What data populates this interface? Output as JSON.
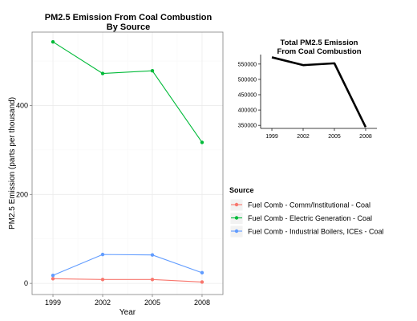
{
  "chart_data": [
    {
      "type": "line",
      "title": "PM2.5 Emission From Coal Combustion",
      "subtitle": "By Source",
      "xlabel": "Year",
      "ylabel": "PM2.5 Emission (parts per thousand)",
      "x": [
        1999,
        2002,
        2005,
        2008
      ],
      "x_ticks": [
        "1999",
        "2002",
        "2005",
        "2008"
      ],
      "y_ticks": [
        0,
        200,
        400
      ],
      "ylim": [
        -25,
        565
      ],
      "grid": true,
      "legend": {
        "title": "Source",
        "placement": "right"
      },
      "series": [
        {
          "name": "Fuel Comb - Comm/Institutional - Coal",
          "color": "#F8766D",
          "values": [
            10.6,
            8.8,
            8.8,
            3.0
          ]
        },
        {
          "name": "Fuel Comb - Electric Generation - Coal",
          "color": "#00BA38",
          "values": [
            543,
            472,
            478,
            317
          ]
        },
        {
          "name": "Fuel Comb - Industrial Boilers, ICEs - Coal",
          "color": "#619CFF",
          "values": [
            18,
            65,
            64,
            24
          ]
        }
      ]
    },
    {
      "type": "line",
      "title": "Total PM2.5 Emission",
      "subtitle": "From Coal Combustion",
      "xlabel": "",
      "ylabel": "",
      "x": [
        1999,
        2002,
        2005,
        2008
      ],
      "x_ticks": [
        "1999",
        "2002",
        "2005",
        "2008"
      ],
      "y_ticks": [
        350000,
        400000,
        450000,
        500000,
        550000
      ],
      "ylim": [
        340000,
        581000
      ],
      "grid": false,
      "series": [
        {
          "name": "",
          "color": "#000000",
          "values": [
            572000,
            546500,
            552500,
            344000
          ]
        }
      ]
    }
  ]
}
